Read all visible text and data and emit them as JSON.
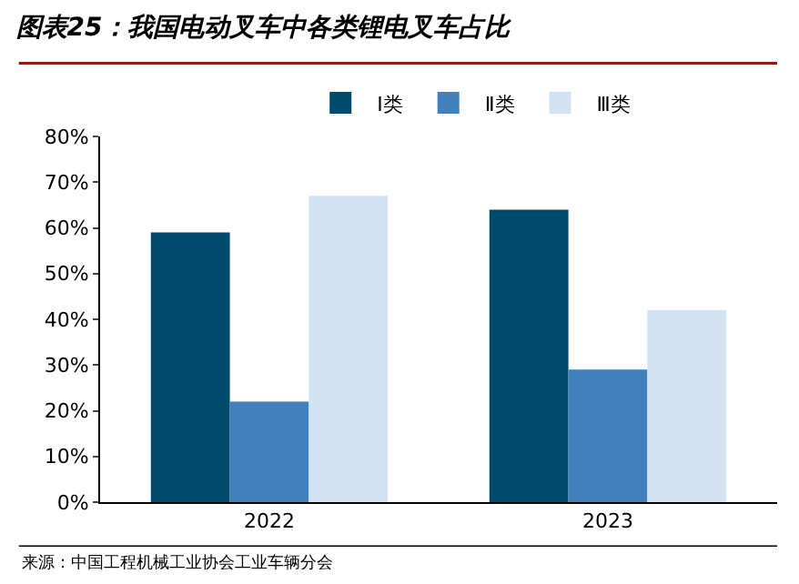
{
  "chart_data": {
    "type": "bar",
    "title": "图表25：我国电动叉车中各类锂电叉车占比",
    "categories": [
      "2022",
      "2023"
    ],
    "series": [
      {
        "name": "Ⅰ类",
        "color": "#004a6e",
        "values": [
          59,
          64
        ]
      },
      {
        "name": "Ⅱ类",
        "color": "#417fbd",
        "values": [
          22,
          29
        ]
      },
      {
        "name": "Ⅲ类",
        "color": "#d2e2f2",
        "values": [
          67,
          42
        ]
      }
    ],
    "ylim": [
      0,
      80
    ],
    "yticks": [
      {
        "value": 0,
        "label": "0%"
      },
      {
        "value": 10,
        "label": "10%"
      },
      {
        "value": 20,
        "label": "20%"
      },
      {
        "value": 30,
        "label": "30%"
      },
      {
        "value": 40,
        "label": "40%"
      },
      {
        "value": 50,
        "label": "50%"
      },
      {
        "value": 60,
        "label": "60%"
      },
      {
        "value": 70,
        "label": "70%"
      },
      {
        "value": 80,
        "label": "80%"
      }
    ],
    "legend": "top",
    "annotations": [
      "来源：中国工程机械工业协会工业车辆分会"
    ]
  }
}
